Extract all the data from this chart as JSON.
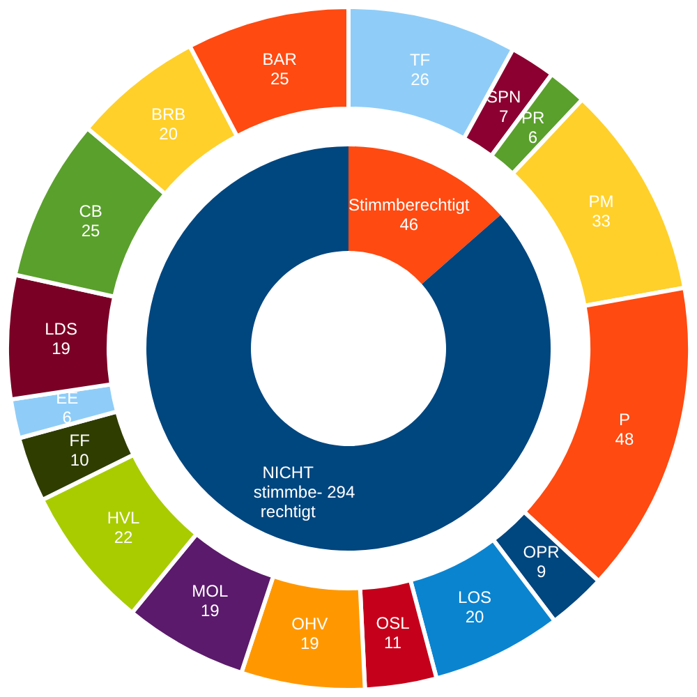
{
  "chart_data": [
    {
      "type": "donut",
      "categories": [
        "Stimmberechtigt",
        "NICHT\nstimmbe-\nrechtigt"
      ],
      "values": [
        46,
        294
      ],
      "colors": [
        "#ff4a11",
        "#00467f"
      ],
      "data_labels": true
    },
    {
      "type": "donut",
      "categories": [
        "TF",
        "SPN",
        "PR",
        "PM",
        "P",
        "OPR",
        "LOS",
        "OSL",
        "OHV",
        "MOL",
        "HVL",
        "FF",
        "EE",
        "LDS",
        "CB",
        "BRB",
        "BAR"
      ],
      "values": [
        26,
        7,
        6,
        33,
        48,
        9,
        20,
        11,
        19,
        19,
        22,
        10,
        6,
        19,
        25,
        20,
        25
      ],
      "colors": [
        "#8fcdf8",
        "#8b0030",
        "#5aa02c",
        "#ffd02a",
        "#ff4a11",
        "#00467f",
        "#0b84d0",
        "#c5001a",
        "#ff9800",
        "#5b1a6b",
        "#a8cc00",
        "#2f3d00",
        "#8fcdf8",
        "#7a0025",
        "#5aa02c",
        "#ffd02a",
        "#ff4a11"
      ],
      "data_labels": true
    }
  ]
}
